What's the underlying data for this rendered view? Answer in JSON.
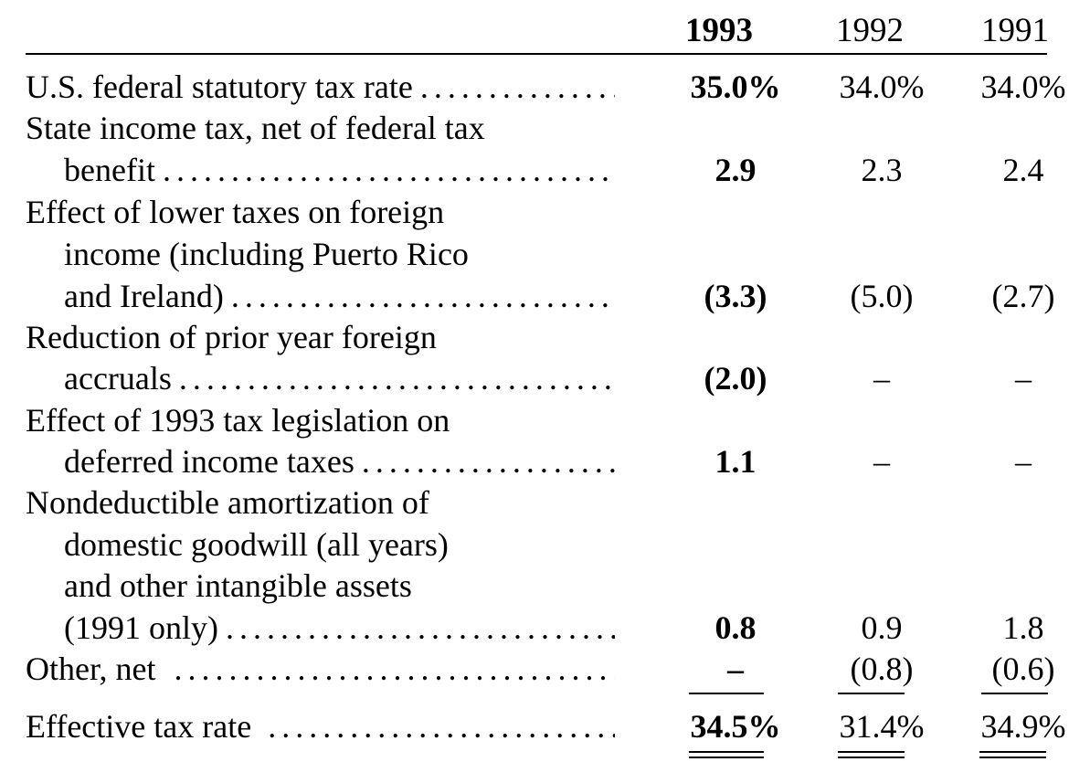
{
  "headers": {
    "y1993": "1993",
    "y1992": "1992",
    "y1991": "1991"
  },
  "rows": [
    {
      "label_lines": [
        "U.S. federal statutory tax rate"
      ],
      "v1993": "35.0%",
      "v1992": "34.0%",
      "v1991": "34.0%"
    },
    {
      "label_lines": [
        "State income tax, net of federal tax",
        "benefit"
      ],
      "v1993": "2.9",
      "v1992": "2.3",
      "v1991": "2.4"
    },
    {
      "label_lines": [
        "Effect of lower taxes on foreign",
        "income (including Puerto Rico",
        "and Ireland)"
      ],
      "v1993": "(3.3)",
      "v1992": "(5.0)",
      "v1991": "(2.7)"
    },
    {
      "label_lines": [
        "Reduction of prior year foreign",
        "accruals"
      ],
      "v1993": "(2.0)",
      "v1992": "–",
      "v1991": "–"
    },
    {
      "label_lines": [
        "Effect of 1993 tax legislation on",
        "deferred income taxes"
      ],
      "v1993": "1.1",
      "v1992": "–",
      "v1991": "–"
    },
    {
      "label_lines": [
        "Nondeductible amortization of",
        "domestic goodwill (all years)",
        "and other intangible assets",
        "(1991 only)"
      ],
      "v1993": "0.8",
      "v1992": "0.9",
      "v1991": "1.8"
    },
    {
      "label_lines": [
        "Other, net"
      ],
      "v1993": "–",
      "v1992": "(0.8)",
      "v1991": "(0.6)"
    },
    {
      "label_lines": [
        "Effective tax rate"
      ],
      "v1993": "34.5%",
      "v1992": "31.4%",
      "v1991": "34.9%"
    }
  ]
}
